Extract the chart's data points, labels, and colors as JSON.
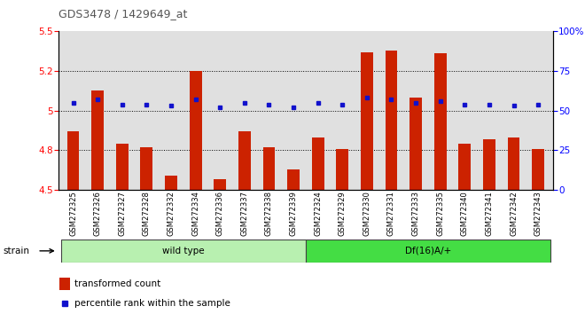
{
  "title": "GDS3478 / 1429649_at",
  "samples": [
    "GSM272325",
    "GSM272326",
    "GSM272327",
    "GSM272328",
    "GSM272332",
    "GSM272334",
    "GSM272336",
    "GSM272337",
    "GSM272338",
    "GSM272339",
    "GSM272324",
    "GSM272329",
    "GSM272330",
    "GSM272331",
    "GSM272333",
    "GSM272335",
    "GSM272340",
    "GSM272341",
    "GSM272342",
    "GSM272343"
  ],
  "red_values": [
    4.87,
    5.13,
    4.79,
    4.77,
    4.59,
    5.25,
    4.57,
    4.87,
    4.77,
    4.63,
    4.83,
    4.76,
    5.37,
    5.38,
    5.08,
    5.36,
    4.79,
    4.82,
    4.83,
    4.76
  ],
  "blue_values": [
    55,
    57,
    54,
    54,
    53,
    57,
    52,
    55,
    54,
    52,
    55,
    54,
    58,
    57,
    55,
    56,
    54,
    54,
    53,
    54
  ],
  "ymin": 4.5,
  "ymax": 5.5,
  "y2min": 0,
  "y2max": 100,
  "yticks": [
    4.5,
    4.75,
    5.0,
    5.25,
    5.5
  ],
  "y2ticks": [
    0,
    25,
    50,
    75,
    100
  ],
  "hlines": [
    4.75,
    5.0,
    5.25
  ],
  "wild_type_count": 10,
  "df_count": 10,
  "group1_label": "wild type",
  "group2_label": "Df(16)A/+",
  "group1_color": "#b8f0b0",
  "group2_color": "#44dd44",
  "bar_color": "#CC2200",
  "dot_color": "#1111CC",
  "bg_color": "#E0E0E0",
  "strain_label": "strain",
  "legend_red": "transformed count",
  "legend_blue": "percentile rank within the sample",
  "title_color": "#555555"
}
